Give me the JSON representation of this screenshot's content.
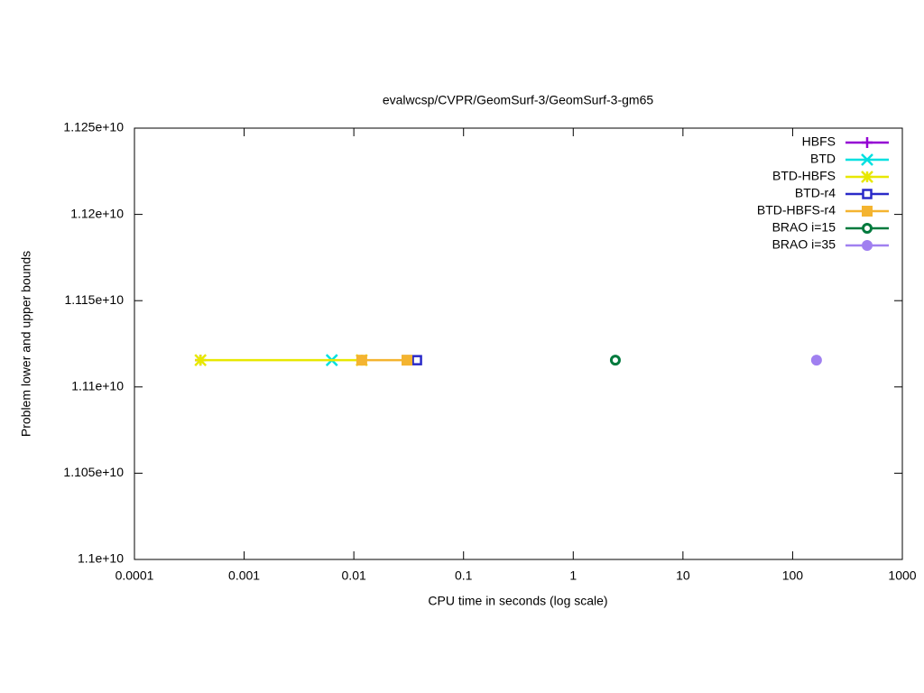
{
  "chart_data": {
    "type": "line",
    "title": "evalwcsp/CVPR/GeomSurf-3/GeomSurf-3-gm65",
    "xlabel": "CPU time in seconds (log scale)",
    "ylabel": "Problem lower and upper bounds",
    "xscale": "log",
    "xlim": [
      0.0001,
      1000
    ],
    "xticks": [
      0.0001,
      0.001,
      0.01,
      0.1,
      1,
      10,
      100,
      1000
    ],
    "ylim": [
      11000000000,
      11250000000
    ],
    "yticks": [
      {
        "value": 11000000000,
        "label": "1.1e+10"
      },
      {
        "value": 11050000000,
        "label": "1.105e+10"
      },
      {
        "value": 11100000000,
        "label": "1.11e+10"
      },
      {
        "value": 11150000000,
        "label": "1.115e+10"
      },
      {
        "value": 11200000000,
        "label": "1.12e+10"
      },
      {
        "value": 11250000000,
        "label": "1.125e+10"
      }
    ],
    "legend": "top-right",
    "series": [
      {
        "name": "HBFS",
        "color": "#9400d3",
        "marker": "plus",
        "x": [
          0.0004
        ],
        "values": [
          11115500000
        ]
      },
      {
        "name": "BTD",
        "color": "#00e0e0",
        "marker": "cross",
        "x": [
          0.0063
        ],
        "values": [
          11115500000
        ]
      },
      {
        "name": "BTD-HBFS",
        "color": "#e8e800",
        "marker": "star",
        "x": [
          0.0004,
          0.0118
        ],
        "values": [
          11115500000,
          11115500000
        ]
      },
      {
        "name": "BTD-r4",
        "color": "#2a2ac8",
        "marker": "open-square",
        "x": [
          0.0305,
          0.0376
        ],
        "values": [
          11115500000,
          11115500000
        ]
      },
      {
        "name": "BTD-HBFS-r4",
        "color": "#f4b430",
        "marker": "square",
        "x": [
          0.0118,
          0.0305
        ],
        "values": [
          11115500000,
          11115500000
        ]
      },
      {
        "name": "BRAO i=15",
        "color": "#007a3d",
        "marker": "ring",
        "x": [
          2.42
        ],
        "values": [
          11115500000
        ]
      },
      {
        "name": "BRAO i=35",
        "color": "#a080f0",
        "marker": "circle",
        "x": [
          165
        ],
        "values": [
          11115500000
        ]
      }
    ]
  }
}
